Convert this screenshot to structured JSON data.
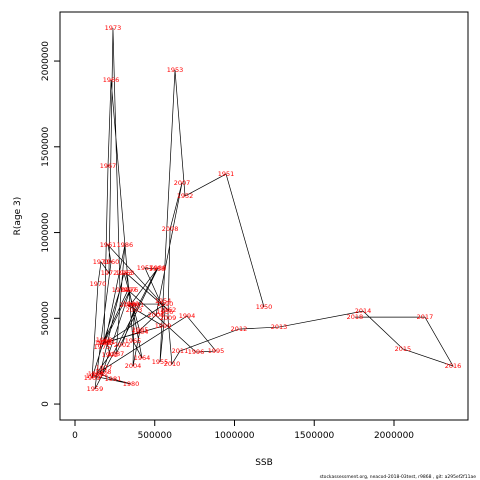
{
  "chart_data": {
    "type": "line",
    "x_label": "SSB",
    "y_label": "R(age 3)",
    "footer": "stockassessment.org, neacod-2018-03test, r9868 , git: a295ef2f11ae",
    "line_color": "#000000",
    "label_color": "#ff0000",
    "years": [
      1950,
      1951,
      1952,
      1953,
      1954,
      1955,
      1956,
      1957,
      1958,
      1959,
      1960,
      1961,
      1962,
      1963,
      1964,
      1965,
      1966,
      1967,
      1968,
      1969,
      1970,
      1971,
      1972,
      1973,
      1974,
      1975,
      1976,
      1977,
      1978,
      1979,
      1980,
      1981,
      1982,
      1983,
      1984,
      1985,
      1986,
      1987,
      1988,
      1989,
      1990,
      1991,
      1992,
      1993,
      1994,
      1995,
      1996,
      1997,
      1998,
      1999,
      2000,
      2001,
      2002,
      2003,
      2004,
      2005,
      2006,
      2007,
      2008,
      2009,
      2010,
      2011,
      2012,
      2013,
      2014,
      2015,
      2016,
      2017,
      2018
    ],
    "x": [
      1185000,
      947000,
      690000,
      627000,
      552000,
      533000,
      564000,
      439000,
      514000,
      125000,
      226000,
      207000,
      583000,
      320000,
      420000,
      364000,
      226000,
      207000,
      182000,
      107000,
      144000,
      163000,
      213000,
      238000,
      282000,
      169000,
      345000,
      182000,
      176000,
      119000,
      351000,
      238000,
      157000,
      307000,
      408000,
      188000,
      313000,
      257000,
      520000,
      351000,
      564000,
      201000,
      219000,
      132000,
      702000,
      884000,
      759000,
      332000,
      176000,
      552000,
      332000,
      382000,
      295000,
      370000,
      364000,
      408000,
      508000,
      671000,
      596000,
      583000,
      608000,
      658000,
      1028000,
      1279000,
      1806000,
      2056000,
      2370000,
      2194000,
      1755000
    ],
    "y": [
      566000,
      1341000,
      1213000,
      1948000,
      601000,
      245000,
      536000,
      793000,
      787000,
      87000,
      828000,
      927000,
      548000,
      764000,
      268000,
      367000,
      1889000,
      1388000,
      373000,
      152000,
      700000,
      828000,
      764000,
      2192000,
      665000,
      332000,
      665000,
      210000,
      187000,
      163000,
      117000,
      146000,
      175000,
      764000,
      420000,
      356000,
      927000,
      292000,
      793000,
      583000,
      583000,
      362000,
      286000,
      175000,
      513000,
      309000,
      303000,
      665000,
      356000,
      455000,
      577000,
      577000,
      344000,
      548000,
      222000,
      432000,
      519000,
      1289000,
      1020000,
      501000,
      233000,
      309000,
      437000,
      449000,
      542000,
      321000,
      222000,
      507000,
      507000
    ],
    "xlim": [
      -94000,
      2464000
    ],
    "ylim": [
      -93000,
      2286000
    ],
    "xticks": [
      0,
      500000,
      1000000,
      1500000,
      2000000
    ],
    "yticks": [
      0,
      500000,
      1000000,
      1500000,
      2000000
    ]
  }
}
